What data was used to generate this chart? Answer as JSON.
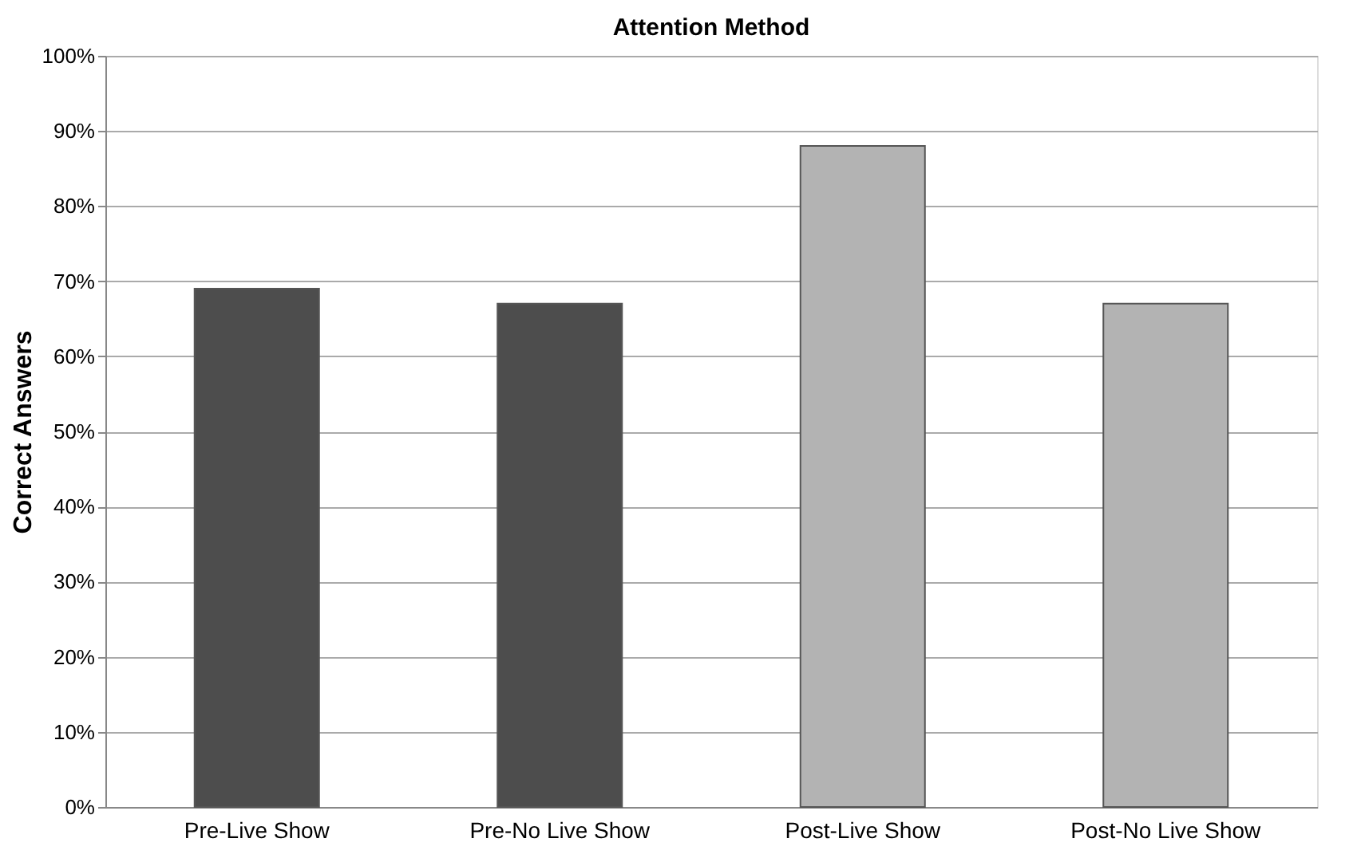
{
  "chart_data": {
    "type": "bar",
    "title": "Attention Method",
    "ylabel": "Correct Answers",
    "categories": [
      "Pre-Live Show",
      "Pre-No Live Show",
      "Post-Live Show",
      "Post-No Live Show"
    ],
    "values": [
      69,
      67,
      88,
      67
    ],
    "colors": [
      "#4d4d4d",
      "#4d4d4d",
      "#b3b3b3",
      "#b3b3b3"
    ],
    "ylim": [
      0,
      100
    ],
    "yticks": [
      {
        "value": 0,
        "label": "0%"
      },
      {
        "value": 10,
        "label": "10%"
      },
      {
        "value": 20,
        "label": "20%"
      },
      {
        "value": 30,
        "label": "30%"
      },
      {
        "value": 40,
        "label": "40%"
      },
      {
        "value": 50,
        "label": "50%"
      },
      {
        "value": 60,
        "label": "60%"
      },
      {
        "value": 70,
        "label": "70%"
      },
      {
        "value": 80,
        "label": "80%"
      },
      {
        "value": 90,
        "label": "90%"
      },
      {
        "value": 100,
        "label": "100%"
      }
    ],
    "grid": "y"
  }
}
